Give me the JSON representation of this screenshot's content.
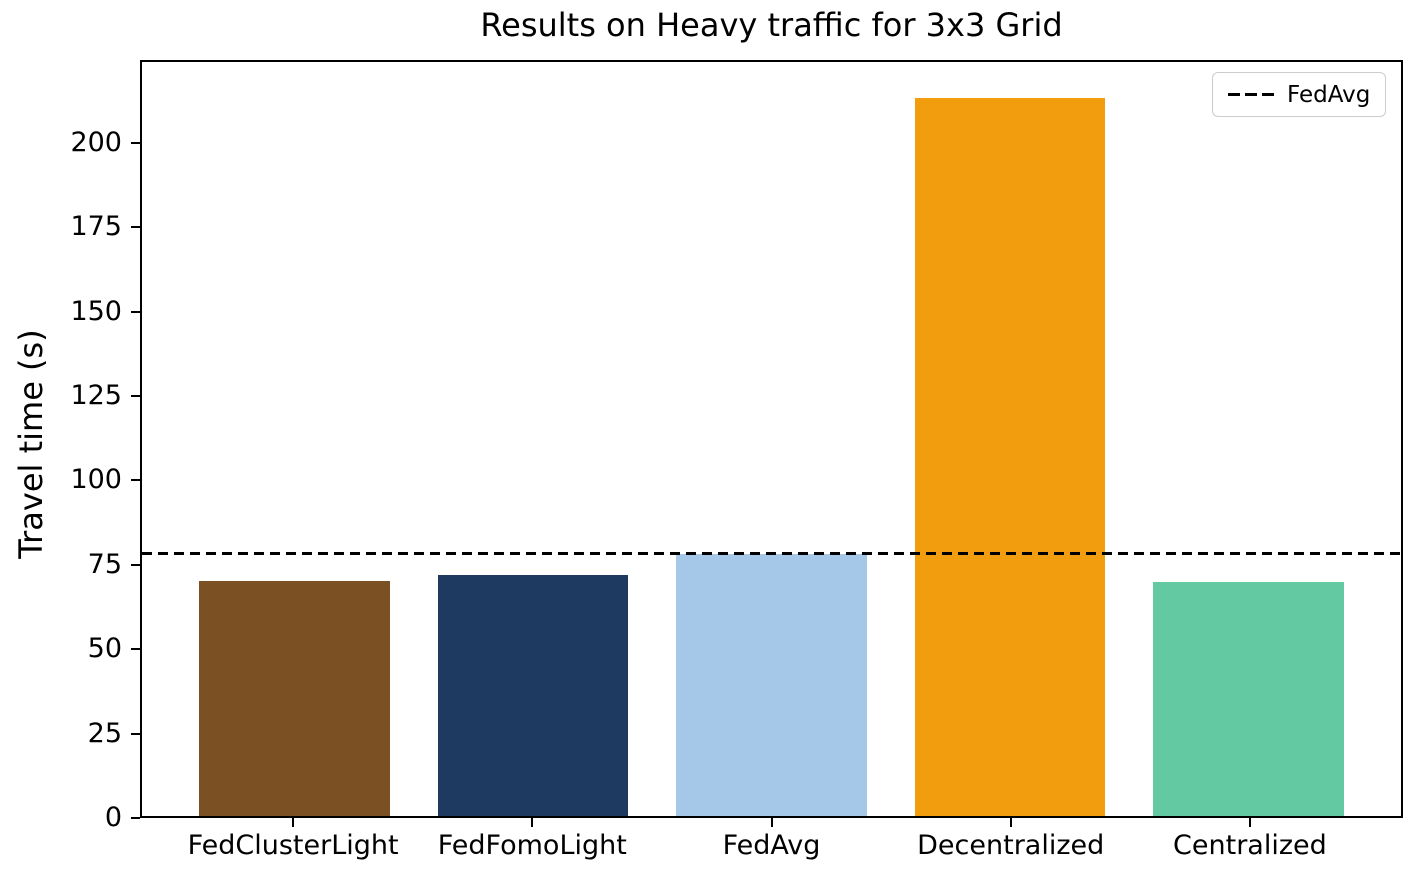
{
  "chart_data": {
    "type": "bar",
    "title": "Results on Heavy traffic for 3x3 Grid",
    "xlabel": "",
    "ylabel": "Travel time (s)",
    "categories": [
      "FedClusterLight",
      "FedFomoLight",
      "FedAvg",
      "Decentralized",
      "Centralized"
    ],
    "values": [
      70,
      71.7,
      78.1,
      213.7,
      69.7
    ],
    "bar_colors": [
      "#7B5123",
      "#1F3A60",
      "#A6C8E8",
      "#F29D0D",
      "#62C9A2"
    ],
    "yticks": [
      0,
      25,
      50,
      75,
      100,
      125,
      150,
      175,
      200
    ],
    "ylim": [
      0,
      224.5
    ],
    "grid": false,
    "legend": {
      "position": "upper right",
      "entries": [
        {
          "label": "FedAvg",
          "style": "dashed-line",
          "color": "#000000"
        }
      ]
    },
    "reference_line": {
      "label": "FedAvg",
      "value": 78.1,
      "style": "dashed",
      "color": "#000000"
    }
  }
}
